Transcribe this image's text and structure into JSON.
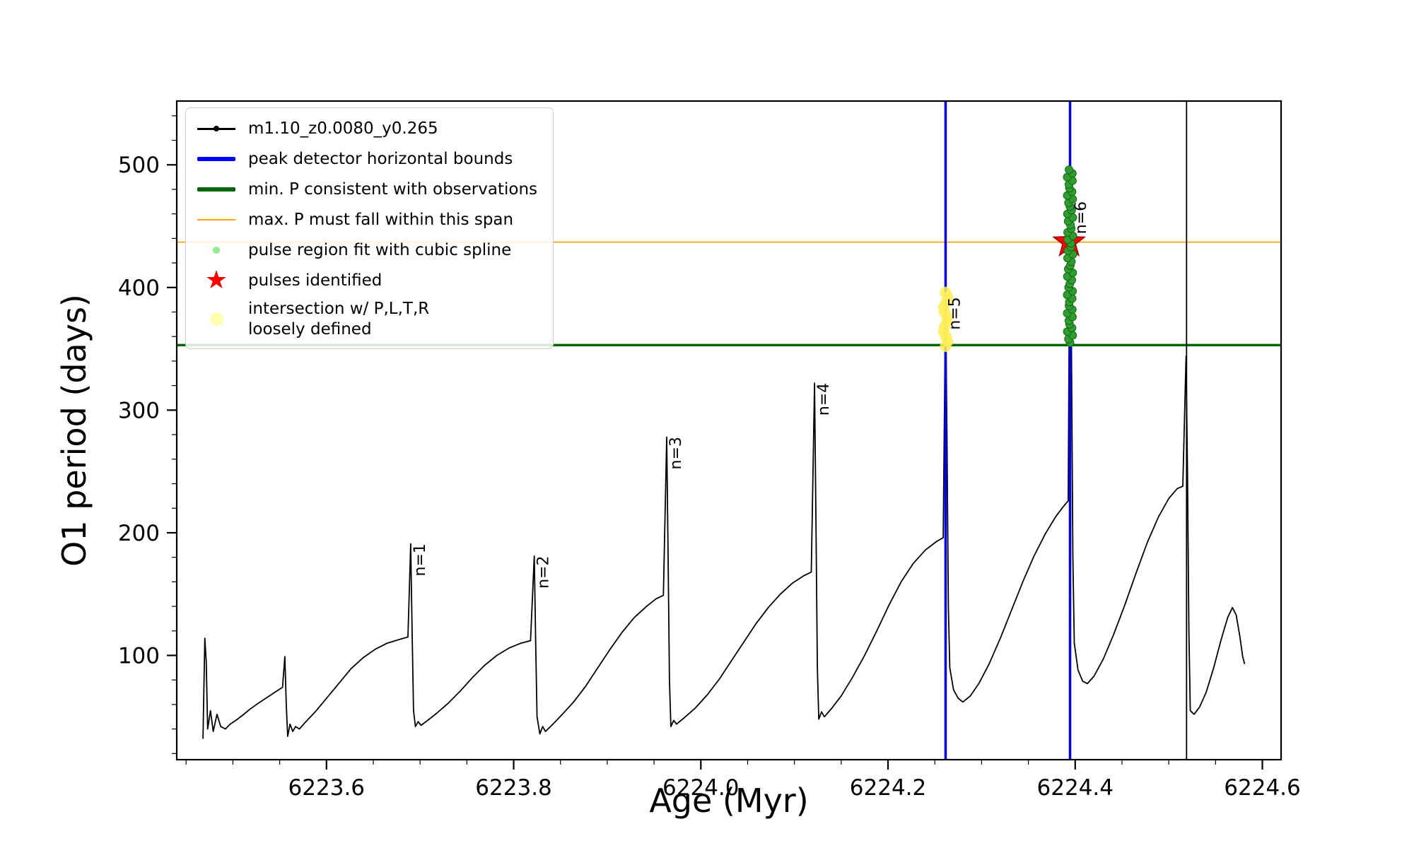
{
  "chart_data": {
    "type": "line",
    "title": "",
    "xlabel": "Age (Myr)",
    "ylabel": "O1 period (days)",
    "xlim": [
      6223.44,
      6224.62
    ],
    "ylim": [
      15,
      552
    ],
    "grid": false,
    "legend_position": "upper-left",
    "x_major_ticks": [
      6223.6,
      6223.8,
      6224.0,
      6224.2,
      6224.4,
      6224.6
    ],
    "x_tick_labels": [
      "6223.6",
      "6223.8",
      "6224.0",
      "6224.2",
      "6224.4",
      "6224.6"
    ],
    "x_minor_step": 0.05,
    "y_major_ticks": [
      100,
      200,
      300,
      400,
      500
    ],
    "y_tick_labels": [
      "100",
      "200",
      "300",
      "400",
      "500"
    ],
    "y_minor_step": 20,
    "series": {
      "name": "m1.10_z0.0080_y0.265",
      "color": "#000000",
      "points": [
        [
          6223.468,
          32
        ],
        [
          6223.47,
          114
        ],
        [
          6223.4715,
          95
        ],
        [
          6223.473,
          40
        ],
        [
          6223.476,
          55
        ],
        [
          6223.479,
          38
        ],
        [
          6223.483,
          52
        ],
        [
          6223.487,
          42
        ],
        [
          6223.492,
          40
        ],
        [
          6223.497,
          44
        ],
        [
          6223.503,
          47
        ],
        [
          6223.51,
          51
        ],
        [
          6223.518,
          56
        ],
        [
          6223.527,
          61
        ],
        [
          6223.537,
          66
        ],
        [
          6223.547,
          71
        ],
        [
          6223.553,
          74
        ],
        [
          6223.5555,
          99
        ],
        [
          6223.557,
          60
        ],
        [
          6223.5585,
          34
        ],
        [
          6223.561,
          44
        ],
        [
          6223.564,
          38
        ],
        [
          6223.567,
          42
        ],
        [
          6223.571,
          40
        ],
        [
          6223.578,
          46
        ],
        [
          6223.588,
          54
        ],
        [
          6223.6,
          65
        ],
        [
          6223.613,
          77
        ],
        [
          6223.626,
          89
        ],
        [
          6223.639,
          98
        ],
        [
          6223.652,
          105
        ],
        [
          6223.665,
          110
        ],
        [
          6223.678,
          113
        ],
        [
          6223.687,
          115
        ],
        [
          6223.69,
          191
        ],
        [
          6223.6915,
          120
        ],
        [
          6223.693,
          55
        ],
        [
          6223.695,
          42
        ],
        [
          6223.698,
          46
        ],
        [
          6223.701,
          43
        ],
        [
          6223.708,
          47
        ],
        [
          6223.718,
          53
        ],
        [
          6223.73,
          61
        ],
        [
          6223.743,
          71
        ],
        [
          6223.756,
          82
        ],
        [
          6223.769,
          92
        ],
        [
          6223.782,
          100
        ],
        [
          6223.795,
          106
        ],
        [
          6223.808,
          110
        ],
        [
          6223.818,
          112
        ],
        [
          6223.822,
          181
        ],
        [
          6223.8235,
          110
        ],
        [
          6223.825,
          50
        ],
        [
          6223.828,
          36
        ],
        [
          6223.831,
          42
        ],
        [
          6223.834,
          38
        ],
        [
          6223.842,
          44
        ],
        [
          6223.852,
          52
        ],
        [
          6223.864,
          62
        ],
        [
          6223.877,
          75
        ],
        [
          6223.89,
          90
        ],
        [
          6223.903,
          105
        ],
        [
          6223.916,
          119
        ],
        [
          6223.929,
          131
        ],
        [
          6223.942,
          140
        ],
        [
          6223.952,
          146
        ],
        [
          6223.96,
          149
        ],
        [
          6223.9635,
          278
        ],
        [
          6223.965,
          180
        ],
        [
          6223.9665,
          80
        ],
        [
          6223.968,
          42
        ],
        [
          6223.971,
          47
        ],
        [
          6223.974,
          44
        ],
        [
          6223.982,
          49
        ],
        [
          6223.994,
          57
        ],
        [
          6224.007,
          68
        ],
        [
          6224.02,
          81
        ],
        [
          6224.033,
          96
        ],
        [
          6224.046,
          111
        ],
        [
          6224.059,
          126
        ],
        [
          6224.072,
          139
        ],
        [
          6224.085,
          150
        ],
        [
          6224.098,
          159
        ],
        [
          6224.11,
          165
        ],
        [
          6224.118,
          168
        ],
        [
          6224.1215,
          322
        ],
        [
          6224.123,
          210
        ],
        [
          6224.1245,
          90
        ],
        [
          6224.126,
          48
        ],
        [
          6224.129,
          54
        ],
        [
          6224.132,
          50
        ],
        [
          6224.14,
          57
        ],
        [
          6224.15,
          67
        ],
        [
          6224.162,
          82
        ],
        [
          6224.175,
          100
        ],
        [
          6224.188,
          120
        ],
        [
          6224.201,
          141
        ],
        [
          6224.214,
          160
        ],
        [
          6224.227,
          175
        ],
        [
          6224.24,
          186
        ],
        [
          6224.252,
          193
        ],
        [
          6224.259,
          196
        ],
        [
          6224.2615,
          390
        ],
        [
          6224.263,
          280
        ],
        [
          6224.2645,
          140
        ],
        [
          6224.266,
          90
        ],
        [
          6224.27,
          72
        ],
        [
          6224.275,
          65
        ],
        [
          6224.28,
          62
        ],
        [
          6224.288,
          67
        ],
        [
          6224.297,
          77
        ],
        [
          6224.308,
          93
        ],
        [
          6224.32,
          114
        ],
        [
          6224.332,
          137
        ],
        [
          6224.344,
          160
        ],
        [
          6224.356,
          181
        ],
        [
          6224.368,
          199
        ],
        [
          6224.379,
          213
        ],
        [
          6224.388,
          222
        ],
        [
          6224.3925,
          226
        ],
        [
          6224.3945,
          497
        ],
        [
          6224.396,
          350
        ],
        [
          6224.3975,
          180
        ],
        [
          6224.399,
          110
        ],
        [
          6224.403,
          88
        ],
        [
          6224.408,
          79
        ],
        [
          6224.413,
          77
        ],
        [
          6224.42,
          83
        ],
        [
          6224.43,
          97
        ],
        [
          6224.441,
          117
        ],
        [
          6224.453,
          141
        ],
        [
          6224.465,
          167
        ],
        [
          6224.477,
          192
        ],
        [
          6224.489,
          213
        ],
        [
          6224.5,
          228
        ],
        [
          6224.509,
          236
        ],
        [
          6224.515,
          238
        ],
        [
          6224.5185,
          344
        ],
        [
          6224.52,
          250
        ],
        [
          6224.5215,
          120
        ],
        [
          6224.523,
          55
        ],
        [
          6224.527,
          52
        ],
        [
          6224.533,
          58
        ],
        [
          6224.54,
          70
        ],
        [
          6224.548,
          90
        ],
        [
          6224.556,
          113
        ],
        [
          6224.563,
          131
        ],
        [
          6224.568,
          139
        ],
        [
          6224.572,
          133
        ],
        [
          6224.576,
          115
        ],
        [
          6224.579,
          99
        ],
        [
          6224.581,
          93
        ]
      ]
    },
    "vlines": [
      {
        "name": "peak-detector-bound-left",
        "x": 6224.2615,
        "color": "#0000ff",
        "width": 3.5
      },
      {
        "name": "peak-detector-bound-right",
        "x": 6224.3945,
        "color": "#0000ff",
        "width": 3.5
      },
      {
        "name": "next-cycle-line",
        "x": 6224.519,
        "color": "#000000",
        "width": 1.8
      }
    ],
    "hlines": [
      {
        "name": "min-P-line",
        "y": 353,
        "color": "#006400",
        "width": 3.5
      },
      {
        "name": "max-P-line",
        "y": 437,
        "color": "#ffa500",
        "width": 1.8
      }
    ],
    "pulse_region_dots": {
      "x": 6224.3945,
      "y_range": [
        355,
        497
      ],
      "step": 3,
      "radius": 5.5,
      "jitter": 4,
      "fill": "#2e9e2e",
      "stroke": "#176617"
    },
    "intersection_blob": {
      "x": 6224.2615,
      "y_range": [
        352,
        397
      ],
      "step": 4,
      "radius": 8,
      "jitter": 3,
      "fill": "#ffee55",
      "opacity": 0.85
    },
    "pulse_star": {
      "x": 6224.3935,
      "y": 437,
      "outer": 23,
      "inner": 9.5,
      "fill": "#ff0000",
      "stroke": "#a40000"
    },
    "spike_labels": [
      {
        "text": "n=1",
        "x": 6223.69,
        "y": 191
      },
      {
        "text": "n=2",
        "x": 6223.822,
        "y": 181
      },
      {
        "text": "n=3",
        "x": 6223.9635,
        "y": 278
      },
      {
        "text": "n=4",
        "x": 6224.1215,
        "y": 322
      },
      {
        "text": "n=5",
        "x": 6224.2615,
        "y": 392
      },
      {
        "text": "n=6",
        "x": 6224.3965,
        "y": 470
      }
    ]
  },
  "legend": {
    "entries": [
      {
        "label": "m1.10_z0.0080_y0.265",
        "marker": "line-dot",
        "color": "#000000"
      },
      {
        "label": "peak detector horizontal bounds",
        "marker": "thick-line",
        "color": "#0000ff"
      },
      {
        "label": "min. P consistent with observations",
        "marker": "thick-line",
        "color": "#006400"
      },
      {
        "label": "max. P must fall within this span",
        "marker": "line",
        "color": "#ffa500"
      },
      {
        "label": "pulse region fit with cubic spline",
        "marker": "dot",
        "color": "#90ee90"
      },
      {
        "label": "pulses identified",
        "marker": "star",
        "color": "#ff0000"
      },
      {
        "label": "intersection w/ P,L,T,R\nloosely defined",
        "marker": "big-dot",
        "color": "#ffffb0"
      }
    ]
  }
}
